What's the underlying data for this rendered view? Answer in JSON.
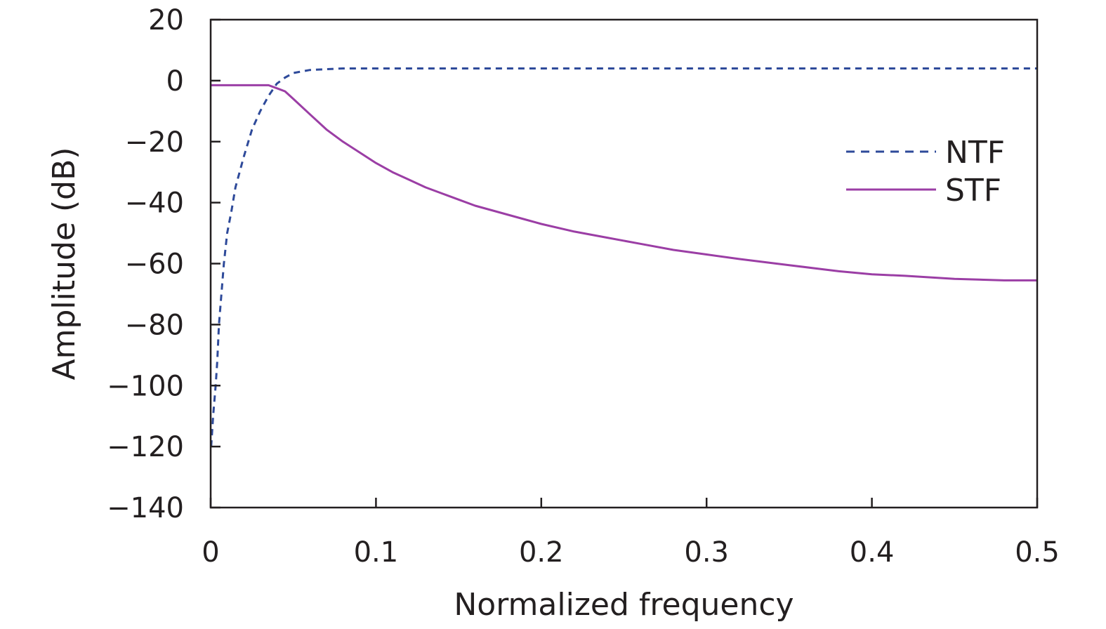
{
  "chart_data": {
    "type": "line",
    "title": "",
    "xlabel": "Normalized frequency",
    "ylabel": "Amplitude (dB)",
    "xlim": [
      0,
      0.5
    ],
    "ylim": [
      -140,
      20
    ],
    "x_ticks": [
      0,
      0.1,
      0.2,
      0.3,
      0.4,
      0.5
    ],
    "x_tick_labels": [
      "0",
      "0.1",
      "0.2",
      "0.3",
      "0.4",
      "0.5"
    ],
    "y_ticks": [
      20,
      0,
      -20,
      -40,
      -60,
      -80,
      -100,
      -120,
      -140
    ],
    "y_tick_labels": [
      "20",
      "0",
      "−20",
      "−40",
      "−60",
      "−80",
      "−100",
      "−120",
      "−140"
    ],
    "grid": false,
    "legend_position": "top-right",
    "series": [
      {
        "name": "NTF",
        "style": "dashed",
        "color": "#2e4a9a",
        "x": [
          0.0003,
          0.0015,
          0.003,
          0.004,
          0.005,
          0.0065,
          0.008,
          0.01,
          0.0125,
          0.015,
          0.02,
          0.025,
          0.03,
          0.035,
          0.04,
          0.045,
          0.05,
          0.055,
          0.06,
          0.08,
          0.13,
          0.2,
          0.3,
          0.4,
          0.5
        ],
        "y": [
          -120,
          -110,
          -100,
          -92,
          -80,
          -70,
          -60,
          -50,
          -43,
          -35,
          -25,
          -16,
          -10,
          -5,
          -1,
          1,
          2.5,
          3,
          3.5,
          4,
          4,
          4,
          4,
          4,
          4
        ]
      },
      {
        "name": "STF",
        "style": "solid",
        "color": "#9b3ea5",
        "x": [
          0,
          0.01,
          0.02,
          0.03,
          0.035,
          0.04,
          0.045,
          0.05,
          0.06,
          0.07,
          0.08,
          0.09,
          0.1,
          0.11,
          0.12,
          0.13,
          0.14,
          0.15,
          0.16,
          0.17,
          0.18,
          0.19,
          0.2,
          0.22,
          0.24,
          0.26,
          0.28,
          0.3,
          0.32,
          0.35,
          0.38,
          0.4,
          0.42,
          0.45,
          0.48,
          0.5
        ],
        "y": [
          -1.5,
          -1.5,
          -1.5,
          -1.5,
          -1.5,
          -2.5,
          -3.5,
          -6,
          -11,
          -16,
          -20,
          -23.5,
          -27,
          -30,
          -32.5,
          -35,
          -37,
          -39,
          -41,
          -42.5,
          -44,
          -45.5,
          -47,
          -49.5,
          -51.5,
          -53.5,
          -55.5,
          -57,
          -58.5,
          -60.5,
          -62.5,
          -63.5,
          -64,
          -65,
          -65.5,
          -65.5
        ]
      }
    ]
  }
}
